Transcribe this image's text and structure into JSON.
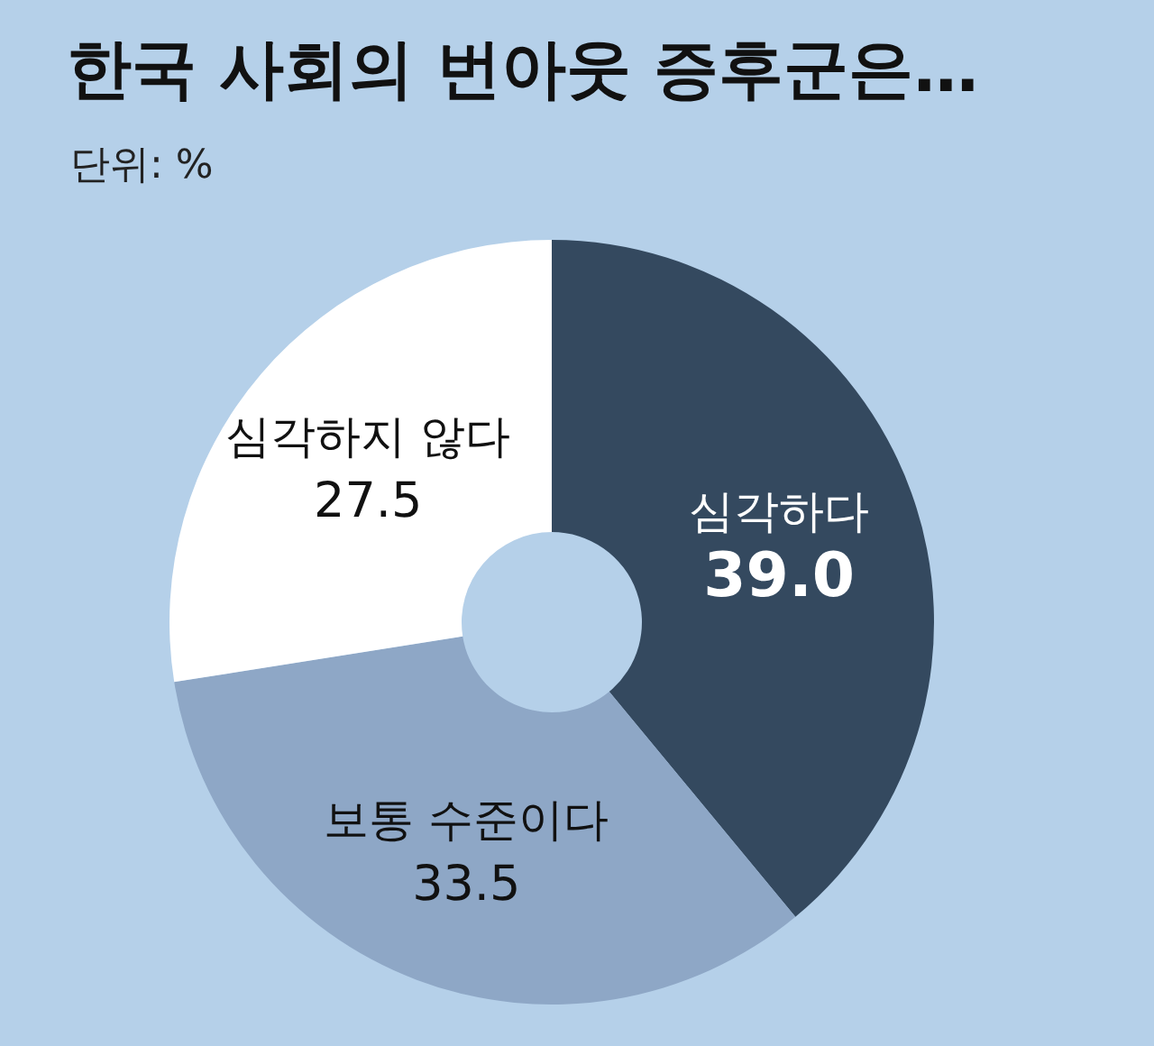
{
  "chart_data": {
    "type": "donut",
    "title": "한국 사회의 번아웃 증후군은…",
    "subtitle": "단위: %",
    "categories": [
      "심각하다",
      "보통 수준이다",
      "심각하지 않다"
    ],
    "values": [
      39.0,
      33.5,
      27.5
    ],
    "value_labels": [
      "39.0",
      "33.5",
      "27.5"
    ],
    "colors": [
      "#34495f",
      "#8ea7c6",
      "#ffffff"
    ],
    "legend": false
  }
}
